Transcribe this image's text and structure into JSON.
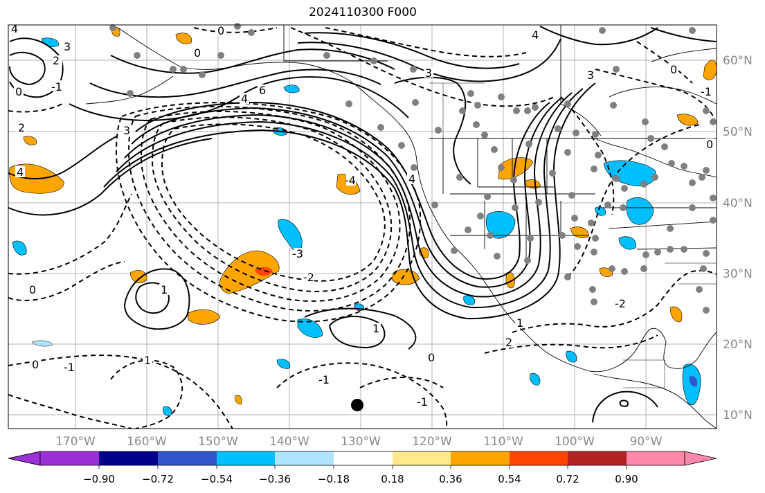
{
  "title": "2024110300 F000",
  "lon_labels": [
    "170°W",
    "160°W",
    "150°W",
    "140°W",
    "130°W",
    "120°W",
    "110°W",
    "100°W",
    "90°W"
  ],
  "lat_labels": [
    "60°N",
    "50°N",
    "40°N",
    "30°N",
    "20°N",
    "10°N"
  ],
  "colorbar": {
    "ticks": [
      "−0.90",
      "−0.72",
      "−0.54",
      "−0.36",
      "−0.18",
      "0.18",
      "0.36",
      "0.54",
      "0.72",
      "0.90"
    ],
    "colors": [
      "#9b30d9",
      "#00008b",
      "#3355cc",
      "#00bfff",
      "#aee4ff",
      "#ffffff",
      "#ffe98a",
      "#ffa500",
      "#ff4500",
      "#b22222",
      "#ff88aa"
    ]
  },
  "contour_labels": [
    "4",
    "3",
    "2",
    "-1",
    "0",
    "3",
    "0",
    "4",
    "6",
    "4",
    "3",
    "2",
    "0",
    "4",
    "3",
    "0",
    "0",
    "-1",
    "4",
    "-1",
    "0",
    "1",
    "1",
    "1",
    "2",
    "1",
    "0",
    "-1",
    "-1",
    "0",
    "-2",
    "-2",
    "-3",
    "-4"
  ],
  "colors": {
    "shade_pos": "#ffa500",
    "shade_neg": "#00bfff",
    "station": "#808080",
    "grid": "#b0b0b0"
  }
}
